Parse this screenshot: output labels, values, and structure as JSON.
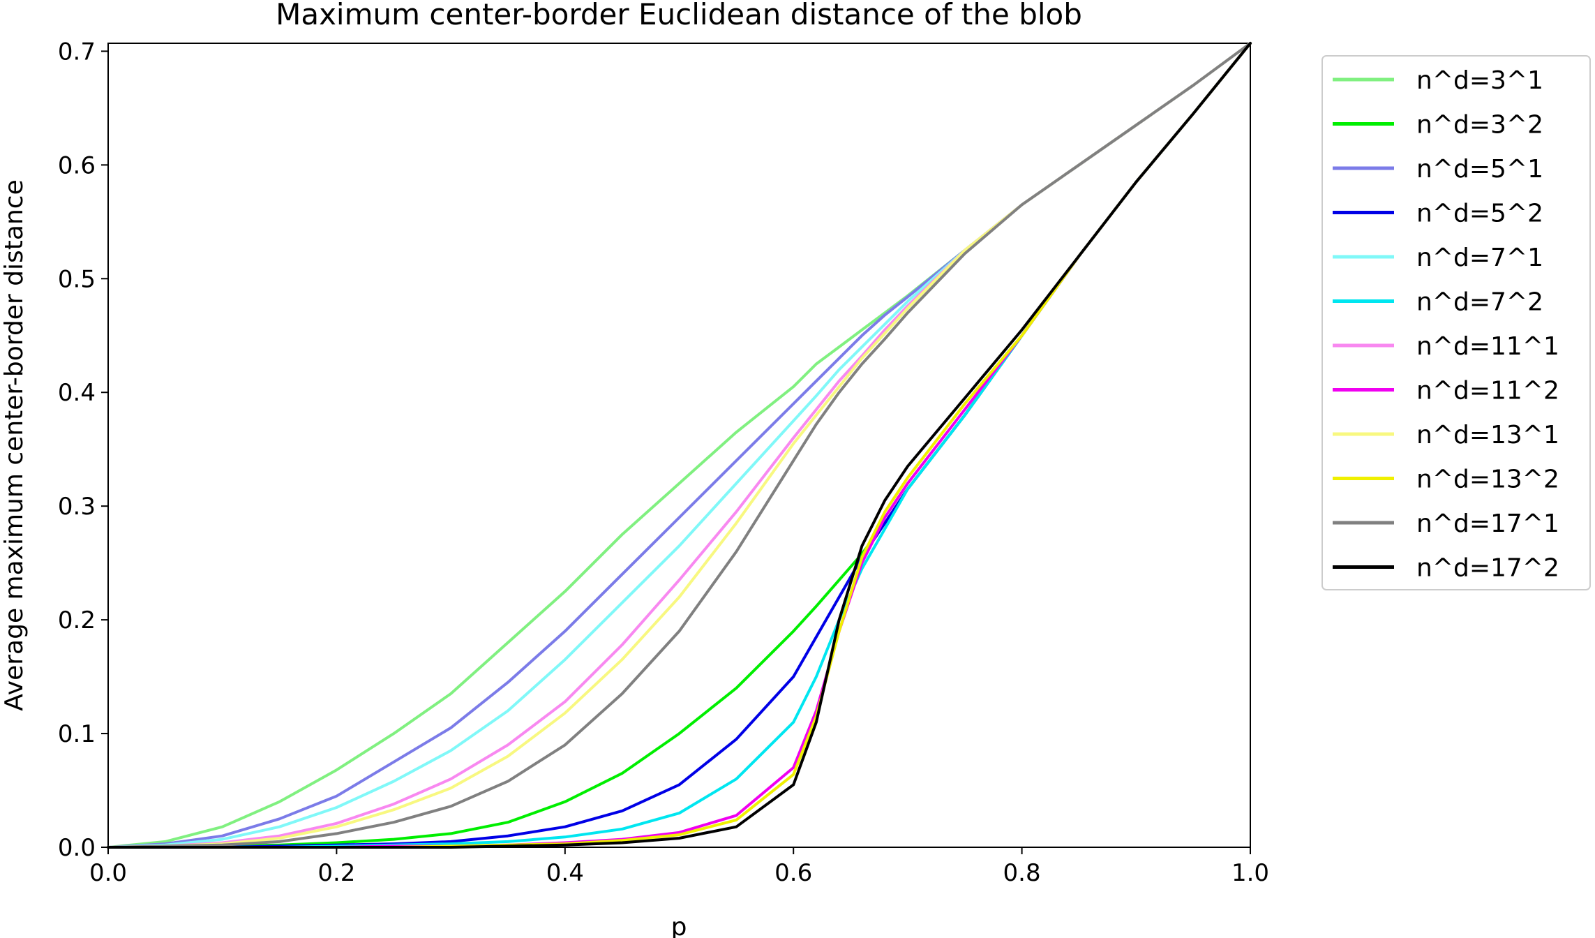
{
  "chart_data": {
    "type": "line",
    "title": "Maximum center-border Euclidean distance of the blob",
    "xlabel": "p",
    "ylabel": "Average maximum center-border distance",
    "xlim": [
      0.0,
      1.0
    ],
    "ylim": [
      0.0,
      0.707
    ],
    "xticks": [
      "0.0",
      "0.2",
      "0.4",
      "0.6",
      "0.8",
      "1.0"
    ],
    "xtick_values": [
      0.0,
      0.2,
      0.4,
      0.6,
      0.8,
      1.0
    ],
    "yticks": [
      "0.0",
      "0.1",
      "0.2",
      "0.3",
      "0.4",
      "0.5",
      "0.6",
      "0.7"
    ],
    "ytick_values": [
      0.0,
      0.1,
      0.2,
      0.3,
      0.4,
      0.5,
      0.6,
      0.7
    ],
    "grid": false,
    "legend_position": "outside-right",
    "x": [
      0.0,
      0.05,
      0.1,
      0.15,
      0.2,
      0.25,
      0.3,
      0.35,
      0.4,
      0.45,
      0.5,
      0.55,
      0.6,
      0.62,
      0.64,
      0.66,
      0.68,
      0.7,
      0.75,
      0.8,
      0.85,
      0.9,
      0.95,
      1.0
    ],
    "series": [
      {
        "name": "n^d=3^1",
        "color": "#80f080",
        "values": [
          0.0,
          0.005,
          0.018,
          0.04,
          0.068,
          0.1,
          0.135,
          0.18,
          0.225,
          0.275,
          0.32,
          0.365,
          0.405,
          0.425,
          0.44,
          0.455,
          0.47,
          0.485,
          0.525,
          0.565,
          0.6,
          0.635,
          0.67,
          0.707
        ]
      },
      {
        "name": "n^d=3^2",
        "color": "#00ee00",
        "values": [
          0.0,
          0.0,
          0.001,
          0.002,
          0.004,
          0.007,
          0.012,
          0.022,
          0.04,
          0.065,
          0.1,
          0.14,
          0.19,
          0.212,
          0.235,
          0.258,
          0.285,
          0.315,
          0.38,
          0.45,
          0.52,
          0.585,
          0.645,
          0.707
        ]
      },
      {
        "name": "n^d=5^1",
        "color": "#7b7be8",
        "values": [
          0.0,
          0.003,
          0.01,
          0.025,
          0.045,
          0.075,
          0.105,
          0.145,
          0.19,
          0.24,
          0.29,
          0.34,
          0.39,
          0.41,
          0.43,
          0.45,
          0.468,
          0.484,
          0.525,
          0.565,
          0.6,
          0.635,
          0.67,
          0.707
        ]
      },
      {
        "name": "n^d=5^2",
        "color": "#0000e6",
        "values": [
          0.0,
          0.0,
          0.0,
          0.001,
          0.002,
          0.003,
          0.005,
          0.01,
          0.018,
          0.032,
          0.055,
          0.095,
          0.15,
          0.185,
          0.22,
          0.255,
          0.285,
          0.315,
          0.38,
          0.45,
          0.52,
          0.585,
          0.645,
          0.707
        ]
      },
      {
        "name": "n^d=7^1",
        "color": "#80f8f8",
        "values": [
          0.0,
          0.002,
          0.007,
          0.018,
          0.035,
          0.058,
          0.085,
          0.12,
          0.165,
          0.215,
          0.265,
          0.32,
          0.375,
          0.397,
          0.42,
          0.44,
          0.46,
          0.48,
          0.525,
          0.565,
          0.6,
          0.635,
          0.67,
          0.707
        ]
      },
      {
        "name": "n^d=7^2",
        "color": "#00e6f0",
        "values": [
          0.0,
          0.0,
          0.0,
          0.0,
          0.001,
          0.002,
          0.003,
          0.005,
          0.009,
          0.016,
          0.03,
          0.06,
          0.11,
          0.15,
          0.2,
          0.245,
          0.28,
          0.315,
          0.38,
          0.45,
          0.52,
          0.585,
          0.645,
          0.707
        ]
      },
      {
        "name": "n^d=11^1",
        "color": "#f888f0",
        "values": [
          0.0,
          0.001,
          0.004,
          0.01,
          0.021,
          0.038,
          0.06,
          0.09,
          0.128,
          0.178,
          0.235,
          0.295,
          0.36,
          0.385,
          0.41,
          0.432,
          0.455,
          0.476,
          0.525,
          0.565,
          0.6,
          0.635,
          0.67,
          0.707
        ]
      },
      {
        "name": "n^d=11^2",
        "color": "#f000f0",
        "values": [
          0.0,
          0.0,
          0.0,
          0.0,
          0.0,
          0.001,
          0.001,
          0.002,
          0.004,
          0.007,
          0.013,
          0.028,
          0.07,
          0.12,
          0.19,
          0.25,
          0.29,
          0.32,
          0.385,
          0.45,
          0.52,
          0.585,
          0.645,
          0.707
        ]
      },
      {
        "name": "n^d=13^1",
        "color": "#f8f880",
        "values": [
          0.0,
          0.001,
          0.003,
          0.008,
          0.018,
          0.033,
          0.052,
          0.08,
          0.118,
          0.165,
          0.22,
          0.285,
          0.355,
          0.38,
          0.405,
          0.43,
          0.452,
          0.474,
          0.525,
          0.565,
          0.6,
          0.635,
          0.67,
          0.707
        ]
      },
      {
        "name": "n^d=13^2",
        "color": "#f0f000",
        "values": [
          0.0,
          0.0,
          0.0,
          0.0,
          0.0,
          0.0,
          0.001,
          0.002,
          0.003,
          0.006,
          0.011,
          0.024,
          0.064,
          0.115,
          0.19,
          0.255,
          0.295,
          0.325,
          0.39,
          0.45,
          0.52,
          0.585,
          0.645,
          0.707
        ]
      },
      {
        "name": "n^d=17^1",
        "color": "#808080",
        "values": [
          0.0,
          0.001,
          0.002,
          0.005,
          0.012,
          0.022,
          0.036,
          0.058,
          0.09,
          0.135,
          0.19,
          0.26,
          0.34,
          0.372,
          0.4,
          0.425,
          0.447,
          0.47,
          0.522,
          0.565,
          0.6,
          0.635,
          0.67,
          0.707
        ]
      },
      {
        "name": "n^d=17^2",
        "color": "#000000",
        "values": [
          0.0,
          0.0,
          0.0,
          0.0,
          0.0,
          0.0,
          0.0,
          0.001,
          0.002,
          0.004,
          0.008,
          0.018,
          0.055,
          0.11,
          0.2,
          0.265,
          0.305,
          0.335,
          0.395,
          0.455,
          0.52,
          0.585,
          0.645,
          0.707
        ]
      }
    ]
  }
}
